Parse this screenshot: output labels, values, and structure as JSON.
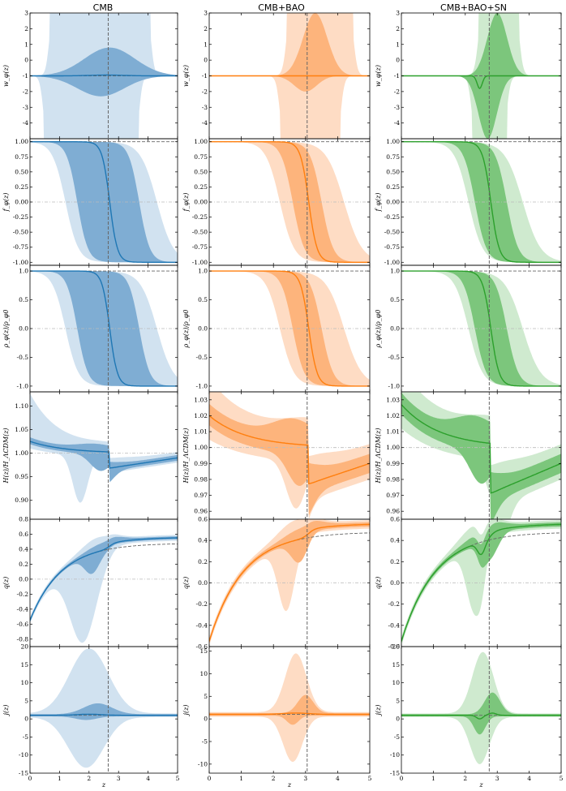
{
  "colors": {
    "CMB": {
      "line": "#1f77b4",
      "inner": "#7fadd3",
      "outer": "#d1e2f0"
    },
    "CMB+BAO": {
      "line": "#ff7f0e",
      "inner": "#fdb47c",
      "outer": "#fedcc4"
    },
    "CMB+BAO+SN": {
      "line": "#2ca02c",
      "inner": "#7cc67c",
      "outer": "#cfeacf"
    }
  },
  "columns": [
    "CMB",
    "CMB+BAO",
    "CMB+BAO+SN"
  ],
  "xlabel": "z",
  "chart_data": {
    "type": "area",
    "grid": "off",
    "rows": [
      {
        "ylabel": "w_φ(z)",
        "ylim": [
          -5,
          3
        ],
        "yticks": [
          "-4",
          "-3",
          "-2",
          "-1",
          "0",
          "1",
          "2",
          "3"
        ],
        "ytick_values": [
          -4,
          -3,
          -2,
          -1,
          0,
          1,
          2,
          3
        ],
        "reference": {
          "value": -1,
          "style": "dashed"
        }
      },
      {
        "ylabel": "f_φ(z)",
        "ylim": [
          -1.05,
          1.05
        ],
        "yticks": [
          "-1.00",
          "-0.75",
          "-0.50",
          "-0.25",
          "0.00",
          "0.25",
          "0.50",
          "0.75",
          "1.00"
        ],
        "ytick_values": [
          -1,
          -0.75,
          -0.5,
          -0.25,
          0,
          0.25,
          0.5,
          0.75,
          1
        ],
        "reference": {
          "value": 1,
          "style": "dashed"
        },
        "zero_line": 0
      },
      {
        "ylabel": "ρ_φ(z)/ρ_φ0",
        "ylim": [
          -1.1,
          1.1
        ],
        "yticks": [
          "-1.0",
          "-0.5",
          "0.0",
          "0.5",
          "1.0"
        ],
        "ytick_values": [
          -1,
          -0.5,
          0,
          0.5,
          1
        ],
        "reference": {
          "value": 1,
          "style": "dashed"
        },
        "zero_line": 0
      },
      {
        "ylabel": "H(z)/H_ΛCDM(z)",
        "per_column_ylim": [
          [
            0.86,
            1.13
          ],
          [
            0.955,
            1.035
          ],
          [
            0.955,
            1.035
          ]
        ],
        "per_column_yticks": [
          [
            "0.90",
            "0.95",
            "1.00",
            "1.05",
            "1.10"
          ],
          [
            "0.96",
            "0.97",
            "0.98",
            "0.99",
            "1.00",
            "1.01",
            "1.02",
            "1.03"
          ],
          [
            "0.96",
            "0.97",
            "0.98",
            "0.99",
            "1.00",
            "1.01",
            "1.02",
            "1.03"
          ]
        ],
        "per_column_ytick_values": [
          [
            0.9,
            0.95,
            1,
            1.05,
            1.1
          ],
          [
            0.96,
            0.97,
            0.98,
            0.99,
            1,
            1.01,
            1.02,
            1.03
          ],
          [
            0.96,
            0.97,
            0.98,
            0.99,
            1,
            1.01,
            1.02,
            1.03
          ]
        ],
        "zero_line": 1
      },
      {
        "ylabel": "q(z)",
        "per_column_ylim": [
          [
            -0.9,
            0.8
          ],
          [
            -0.6,
            0.6
          ],
          [
            -0.6,
            0.6
          ]
        ],
        "per_column_yticks": [
          [
            "-0.8",
            "-0.6",
            "-0.4",
            "-0.2",
            "0.0",
            "0.2",
            "0.4",
            "0.6",
            "0.8"
          ],
          [
            "-0.6",
            "-0.4",
            "-0.2",
            "0.0",
            "0.2",
            "0.4",
            "0.6"
          ],
          [
            "-0.6",
            "-0.4",
            "-0.2",
            "0.0",
            "0.2",
            "0.4",
            "0.6"
          ]
        ],
        "per_column_ytick_values": [
          [
            -0.8,
            -0.6,
            -0.4,
            -0.2,
            0,
            0.2,
            0.4,
            0.6,
            0.8
          ],
          [
            -0.6,
            -0.4,
            -0.2,
            0,
            0.2,
            0.4,
            0.6
          ],
          [
            -0.6,
            -0.4,
            -0.2,
            0,
            0.2,
            0.4,
            0.6
          ]
        ],
        "zero_line": 0
      },
      {
        "ylabel": "j(z)",
        "per_column_ylim": [
          [
            -15,
            20
          ],
          [
            -12,
            16
          ],
          [
            -15,
            20
          ]
        ],
        "per_column_yticks": [
          [
            "-15",
            "-10",
            "-5",
            "0",
            "5",
            "10",
            "15",
            "20"
          ],
          [
            "-10",
            "-5",
            "0",
            "5",
            "10",
            "15"
          ],
          [
            "-15",
            "-10",
            "-5",
            "0",
            "5",
            "10",
            "15",
            "20"
          ]
        ],
        "per_column_ytick_values": [
          [
            -15,
            -10,
            -5,
            0,
            5,
            10,
            15,
            20
          ],
          [
            -10,
            -5,
            0,
            5,
            10,
            15
          ],
          [
            -15,
            -10,
            -5,
            0,
            5,
            10,
            15,
            20
          ]
        ],
        "reference": {
          "value": 1,
          "style": "dashed"
        }
      }
    ],
    "xlim": [
      0,
      5
    ],
    "xticks": [
      "0",
      "1",
      "2",
      "3",
      "4",
      "5"
    ],
    "xtick_values": [
      0,
      1,
      2,
      3,
      4,
      5
    ],
    "vertical_line": {
      "CMB": 2.65,
      "CMB+BAO": 3.05,
      "CMB+BAO+SN": 2.75
    },
    "transition_mid": {
      "CMB": 2.7,
      "CMB+BAO": 3.1,
      "CMB+BAO+SN": 2.8
    },
    "panels": {
      "w": {
        "CMB": {
          "outer_x": [
            0.45,
            0.7,
            1.5,
            2.65,
            3.8,
            4.1
          ],
          "inner_lo_min": -2.3,
          "inner_hi_max": 0.8,
          "inner_x": [
            1.3,
            3.8
          ]
        },
        "CMB+BAO": {
          "outer_x": [
            2.2,
            2.4,
            3.3,
            4.0,
            4.5
          ],
          "inner_lo_min": -2.0,
          "inner_hi_max": 3.0,
          "inner_x": [
            2.6,
            3.7
          ]
        },
        "CMB+BAO+SN": {
          "outer_x": [
            2.2,
            2.3,
            3.3,
            3.7
          ],
          "inner_lo_min": -5.0,
          "inner_hi_max": 3.0,
          "inner_x": [
            2.4,
            3.3
          ],
          "median_dip": -1.8
        }
      },
      "f": {
        "CMB": {
          "median_mid": 2.7,
          "inner": [
            1.6,
            3.7
          ],
          "outer": [
            1.2,
            4.3
          ]
        },
        "CMB+BAO": {
          "median_mid": 3.1,
          "inner": [
            2.6,
            3.5
          ],
          "outer": [
            2.2,
            4.2
          ]
        },
        "CMB+BAO+SN": {
          "median_mid": 2.8,
          "inner": [
            2.3,
            3.3
          ],
          "outer": [
            2.1,
            3.8
          ]
        }
      },
      "H": {
        "CMB": {
          "z0": 1.025,
          "dip": 0.968,
          "z5": 0.99
        },
        "CMB+BAO": {
          "z0": 1.02,
          "dip": 0.977,
          "z5": 0.99
        },
        "CMB+BAO+SN": {
          "z0": 1.027,
          "dip": 0.971,
          "z5": 0.99
        }
      },
      "q": {
        "CMB": {
          "z0": -0.55,
          "zinf": 0.52
        },
        "CMB+BAO": {
          "z0": -0.55,
          "zinf": 0.52
        },
        "CMB+BAO+SN": {
          "z0": -0.55,
          "zinf": 0.52
        }
      },
      "j": {
        "CMB": {
          "outer_peak_hi": 18,
          "outer_peak_lo": -14,
          "inner_peak_hi": 3,
          "inner_peak_lo": -1
        },
        "CMB+BAO": {
          "outer_peak_hi": 13,
          "outer_peak_lo": -10,
          "inner_peak_hi": 4,
          "inner_peak_lo": -2
        },
        "CMB+BAO+SN": {
          "outer_peak_hi": 17,
          "outer_peak_lo": -13,
          "inner_peak_hi": 6,
          "inner_peak_lo": -5
        }
      }
    }
  }
}
